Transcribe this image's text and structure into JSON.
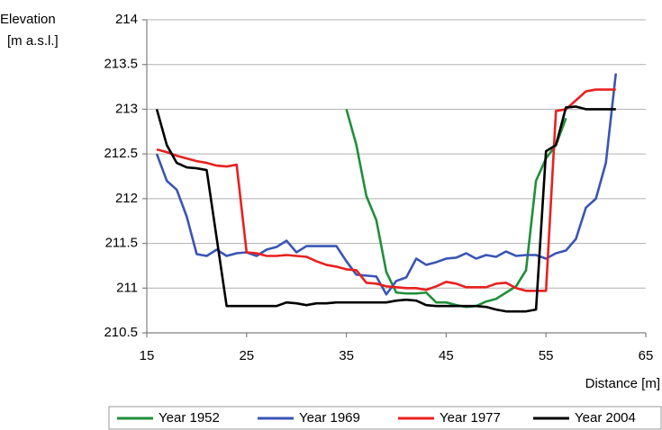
{
  "chart_data": {
    "type": "line",
    "y_label": [
      "Elevation",
      "[m a.s.l.]"
    ],
    "x_label": "Distance [m]",
    "xlim": [
      15,
      65
    ],
    "xticks": [
      15,
      25,
      35,
      45,
      55,
      65
    ],
    "ylim": [
      210.5,
      214
    ],
    "yticks": [
      210.5,
      211,
      211.5,
      212,
      212.5,
      213,
      213.5,
      214
    ],
    "grid": true,
    "legend": "bottom",
    "series": [
      {
        "name": "Year 1952",
        "color": "#1f8f3a",
        "x": [
          35,
          36,
          37,
          38,
          39,
          40,
          41,
          42,
          43,
          44,
          45,
          46,
          47,
          48,
          49,
          50,
          51,
          52,
          53,
          54,
          55,
          56,
          57
        ],
        "values": [
          213.0,
          212.6,
          212.03,
          211.76,
          211.18,
          210.95,
          210.94,
          210.94,
          210.95,
          210.84,
          210.84,
          210.81,
          210.79,
          210.8,
          210.85,
          210.88,
          210.95,
          211.02,
          211.2,
          212.2,
          212.45,
          212.6,
          212.9
        ]
      },
      {
        "name": "Year 1969",
        "color": "#3a55b4",
        "x": [
          16,
          17,
          18,
          19,
          20,
          21,
          22,
          23,
          24,
          25,
          26,
          27,
          28,
          29,
          30,
          31,
          32,
          33,
          34,
          35,
          36,
          37,
          38,
          39,
          40,
          41,
          42,
          43,
          44,
          45,
          46,
          47,
          48,
          49,
          50,
          51,
          52,
          53,
          54,
          55,
          56,
          57,
          58,
          59,
          60,
          61,
          62
        ],
        "values": [
          212.5,
          212.2,
          212.1,
          211.8,
          211.38,
          211.36,
          211.43,
          211.36,
          211.39,
          211.4,
          211.36,
          211.43,
          211.46,
          211.53,
          211.4,
          211.47,
          211.47,
          211.47,
          211.47,
          211.3,
          211.15,
          211.14,
          211.13,
          210.93,
          211.08,
          211.12,
          211.33,
          211.26,
          211.29,
          211.33,
          211.34,
          211.39,
          211.33,
          211.37,
          211.35,
          211.41,
          211.36,
          211.37,
          211.37,
          211.33,
          211.39,
          211.42,
          211.55,
          211.9,
          212.0,
          212.4,
          213.4
        ]
      },
      {
        "name": "Year 1977",
        "color": "#e8211f",
        "x": [
          16,
          17,
          18,
          19,
          20,
          21,
          22,
          23,
          24,
          25,
          26,
          27,
          28,
          29,
          30,
          31,
          32,
          33,
          34,
          35,
          36,
          37,
          38,
          39,
          40,
          41,
          42,
          43,
          44,
          45,
          46,
          47,
          48,
          49,
          50,
          51,
          52,
          53,
          54,
          55,
          56,
          57,
          58,
          59,
          60,
          61,
          62
        ],
        "values": [
          212.55,
          212.52,
          212.48,
          212.45,
          212.42,
          212.4,
          212.37,
          212.36,
          212.38,
          211.4,
          211.39,
          211.36,
          211.36,
          211.37,
          211.36,
          211.35,
          211.3,
          211.26,
          211.24,
          211.21,
          211.2,
          211.06,
          211.05,
          211.02,
          211.01,
          211.0,
          211.0,
          210.98,
          211.02,
          211.07,
          211.05,
          211.01,
          211.01,
          211.01,
          211.05,
          211.06,
          211.0,
          210.97,
          210.97,
          210.97,
          212.98,
          213.0,
          213.1,
          213.2,
          213.22,
          213.22,
          213.22
        ]
      },
      {
        "name": "Year 2004",
        "color": "#000000",
        "x": [
          16,
          17,
          18,
          19,
          20,
          21,
          23,
          24,
          25,
          26,
          27,
          28,
          29,
          30,
          31,
          32,
          33,
          34,
          35,
          36,
          37,
          38,
          39,
          40,
          41,
          42,
          43,
          44,
          45,
          46,
          47,
          48,
          49,
          50,
          51,
          52,
          53,
          54,
          55,
          56,
          57,
          58,
          59,
          60,
          61,
          62
        ],
        "values": [
          213.0,
          212.6,
          212.4,
          212.35,
          212.34,
          212.32,
          210.8,
          210.8,
          210.8,
          210.8,
          210.8,
          210.8,
          210.84,
          210.83,
          210.81,
          210.83,
          210.83,
          210.84,
          210.84,
          210.84,
          210.84,
          210.84,
          210.84,
          210.86,
          210.87,
          210.86,
          210.81,
          210.8,
          210.8,
          210.8,
          210.8,
          210.8,
          210.79,
          210.76,
          210.74,
          210.74,
          210.74,
          210.76,
          212.53,
          212.6,
          213.02,
          213.03,
          213.0,
          213.0,
          213.0,
          213.0
        ]
      }
    ]
  }
}
